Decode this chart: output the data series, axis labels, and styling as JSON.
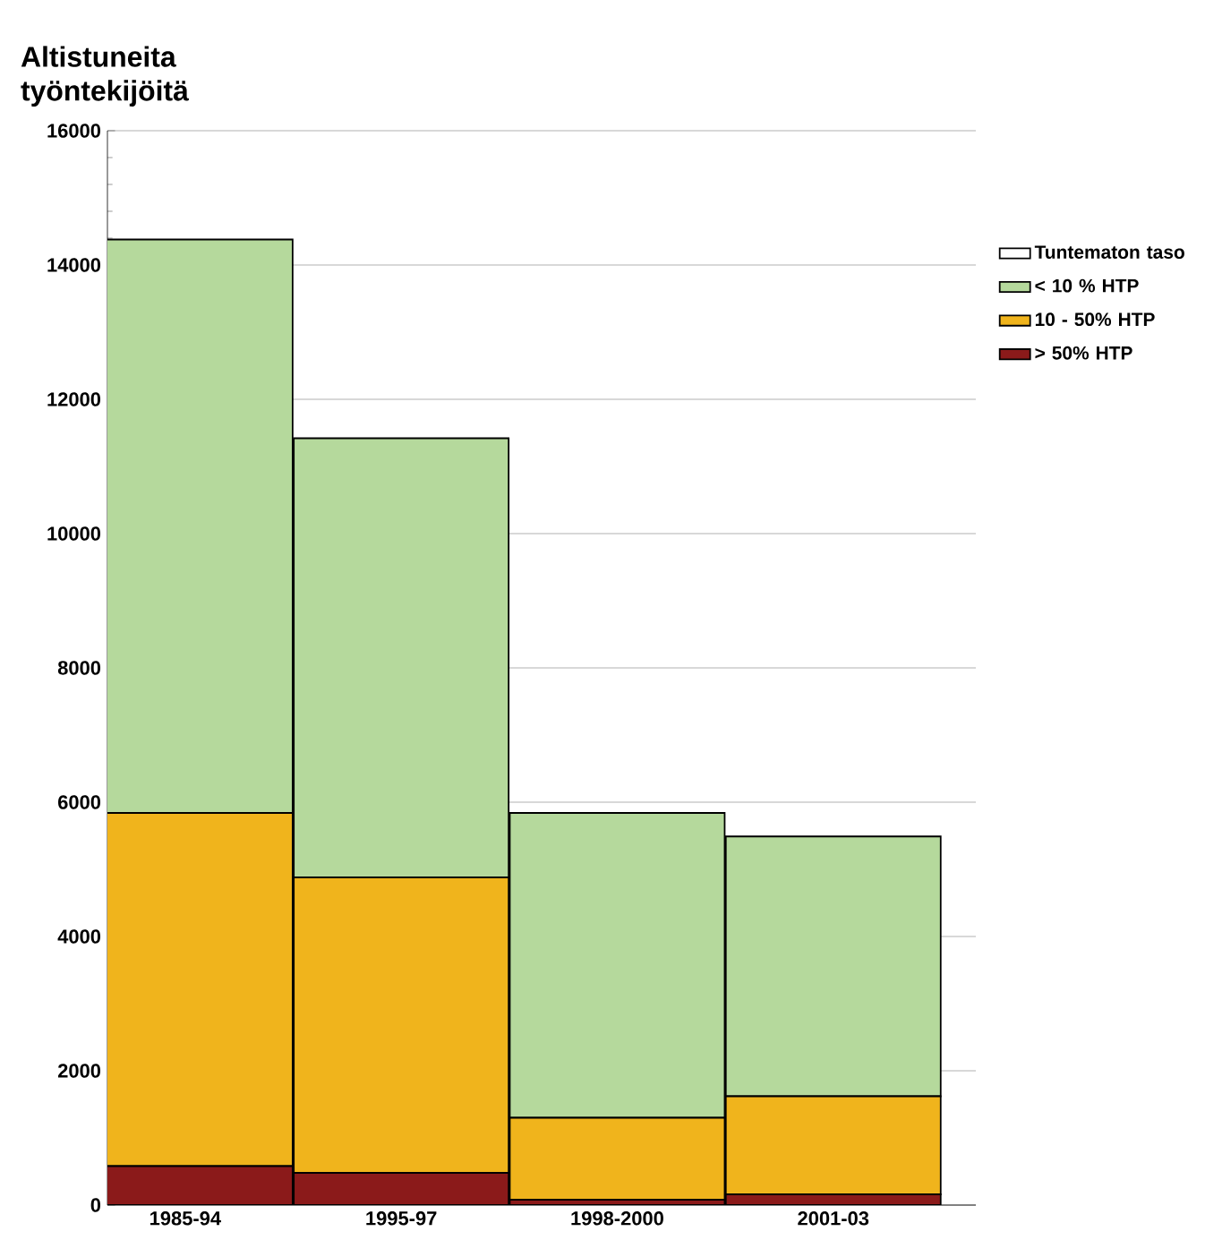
{
  "chart_data": {
    "type": "bar",
    "stacked": true,
    "ylabel": "Altistuneita työntekijöitä",
    "categories": [
      "1985-94",
      "1995-97",
      "1998-2000",
      "2001-03"
    ],
    "series": [
      {
        "name": "> 50% HTP",
        "color": "#8b1a1a",
        "values": [
          580,
          480,
          80,
          160
        ]
      },
      {
        "name": "10 - 50% HTP",
        "color": "#f0b41c",
        "values": [
          5260,
          4400,
          1220,
          1460
        ]
      },
      {
        "name": "< 10 % HTP",
        "color": "#b5d99c",
        "values": [
          8540,
          6540,
          4540,
          3870
        ]
      },
      {
        "name": "Tuntematon taso",
        "color": "#ffffff",
        "values": [
          0,
          0,
          0,
          0
        ]
      }
    ],
    "ylim": [
      0,
      16000
    ],
    "yticks": [
      0,
      2000,
      4000,
      6000,
      8000,
      10000,
      12000,
      14000,
      16000
    ],
    "grid": "y",
    "legend": "right"
  }
}
